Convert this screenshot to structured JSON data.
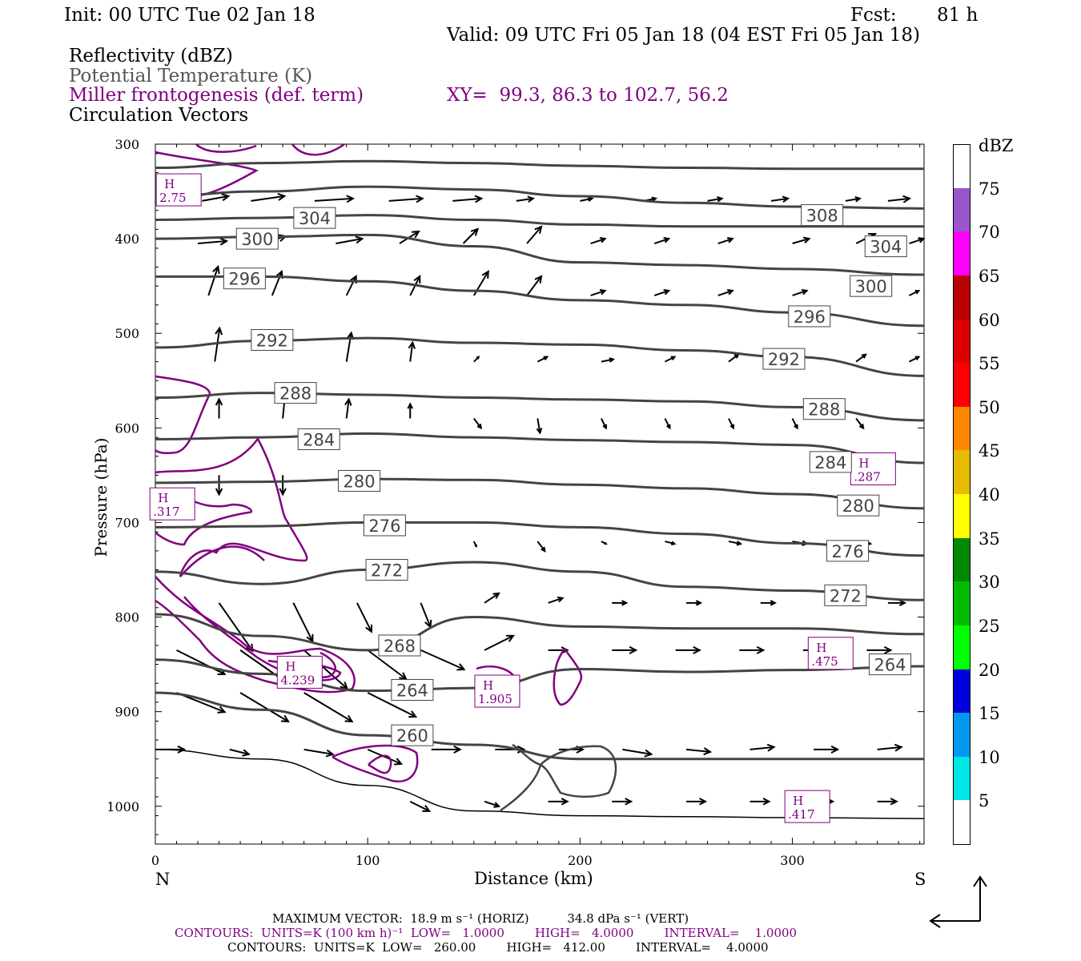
{
  "header": {
    "init": "Init: 00 UTC Tue 02 Jan 18",
    "fcst_label": "Fcst:",
    "fcst_value": "81 h",
    "valid": "Valid: 09 UTC Fri 05 Jan 18 (04 EST Fri 05 Jan 18)",
    "field1": "Reflectivity (dBZ)",
    "field2": "Potential Temperature (K)",
    "field3": "Miller frontogenesis (def. term)",
    "xy": "XY=  99.3, 86.3 to 102.7, 56.2",
    "field4": "Circulation Vectors"
  },
  "axes": {
    "ylabel": "Pressure (hPa)",
    "xlabel": "Distance (km)",
    "left_end": "N",
    "right_end": "S"
  },
  "colorbar": {
    "unit": "dBZ",
    "levels": [
      "75",
      "70",
      "65",
      "60",
      "55",
      "50",
      "45",
      "40",
      "35",
      "30",
      "25",
      "20",
      "15",
      "10",
      "5"
    ],
    "colors": [
      "#ffffff",
      "#9955cc",
      "#ff00ff",
      "#bb0000",
      "#dd0000",
      "#ff0000",
      "#ff8800",
      "#e6bb00",
      "#ffff00",
      "#008800",
      "#00bb00",
      "#00ff00",
      "#0000dd",
      "#0099ee",
      "#00e6e6",
      "#ffffff"
    ]
  },
  "footer": {
    "max_vector": "MAXIMUM VECTOR:  18.9 m s⁻¹ (HORIZ)          34.8 dPa s⁻¹ (VERT)",
    "contours1": "CONTOURS:  UNITS=K (100 km h)⁻¹  LOW=   1.0000        HIGH=   4.0000        INTERVAL=    1.0000",
    "contours2": "CONTOURS:  UNITS=K  LOW=   260.00        HIGH=   412.00        INTERVAL=    4.0000"
  },
  "chart_data": {
    "type": "line",
    "title": "",
    "xlabel": "Distance (km)",
    "ylabel": "Pressure (hPa)",
    "xlim": [
      0,
      362
    ],
    "ylim": [
      1040,
      300
    ],
    "x_ticks": [
      0,
      100,
      200,
      300
    ],
    "y_ticks": [
      300,
      400,
      500,
      600,
      700,
      800,
      900,
      1000
    ],
    "theta_contours": [
      {
        "label": "308",
        "x": [
          0,
          50,
          100,
          150,
          200,
          250,
          300,
          362
        ],
        "p": [
          325,
          320,
          318,
          320,
          323,
          325,
          326,
          326
        ]
      },
      {
        "label": "304",
        "x": [
          0,
          50,
          100,
          150,
          200,
          250,
          300,
          362
        ],
        "p": [
          355,
          350,
          345,
          348,
          355,
          362,
          366,
          368
        ]
      },
      {
        "label": "304",
        "x": [
          0,
          50,
          100,
          150,
          200,
          250,
          300,
          362
        ],
        "p": [
          380,
          378,
          375,
          380,
          385,
          387,
          387,
          387
        ]
      },
      {
        "label": "300",
        "x": [
          0,
          50,
          100,
          150,
          200,
          250,
          300,
          362
        ],
        "p": [
          400,
          398,
          396,
          408,
          425,
          428,
          432,
          438
        ]
      },
      {
        "label": "296",
        "x": [
          0,
          50,
          100,
          150,
          200,
          250,
          300,
          362
        ],
        "p": [
          440,
          440,
          445,
          455,
          465,
          470,
          478,
          492
        ]
      },
      {
        "label": "292",
        "x": [
          0,
          50,
          100,
          150,
          200,
          250,
          300,
          362
        ],
        "p": [
          515,
          508,
          505,
          510,
          512,
          518,
          525,
          545
        ]
      },
      {
        "label": "288",
        "x": [
          0,
          50,
          100,
          150,
          200,
          250,
          300,
          362
        ],
        "p": [
          568,
          563,
          565,
          568,
          570,
          572,
          578,
          592
        ]
      },
      {
        "label": "284",
        "x": [
          0,
          50,
          100,
          150,
          200,
          250,
          300,
          362
        ],
        "p": [
          612,
          610,
          606,
          610,
          613,
          615,
          618,
          637
        ]
      },
      {
        "label": "280",
        "x": [
          0,
          50,
          100,
          150,
          200,
          250,
          300,
          362
        ],
        "p": [
          658,
          657,
          654,
          655,
          660,
          664,
          670,
          685
        ]
      },
      {
        "label": "276",
        "x": [
          0,
          50,
          100,
          150,
          200,
          250,
          300,
          362
        ],
        "p": [
          705,
          704,
          700,
          700,
          705,
          712,
          722,
          735
        ]
      },
      {
        "label": "272",
        "x": [
          0,
          50,
          100,
          150,
          200,
          250,
          300,
          362
        ],
        "p": [
          752,
          765,
          750,
          742,
          752,
          768,
          772,
          782
        ]
      },
      {
        "label": "268",
        "x": [
          0,
          50,
          100,
          150,
          200,
          250,
          300,
          362
        ],
        "p": [
          797,
          820,
          835,
          800,
          810,
          812,
          812,
          818
        ]
      },
      {
        "label": "264",
        "x": [
          0,
          50,
          100,
          150,
          200,
          250,
          300,
          362
        ],
        "p": [
          845,
          860,
          878,
          875,
          855,
          858,
          856,
          852
        ]
      },
      {
        "label": "260",
        "x": [
          0,
          50,
          100,
          150,
          200,
          250,
          300,
          362
        ],
        "p": [
          880,
          898,
          925,
          935,
          950,
          950,
          950,
          950
        ]
      }
    ],
    "surface_pressure": {
      "x": [
        0,
        50,
        100,
        150,
        200,
        250,
        300,
        362
      ],
      "p": [
        940,
        950,
        978,
        1005,
        1010,
        1011,
        1012,
        1013
      ]
    },
    "frontogenesis_maxima": [
      {
        "label": "H",
        "value": "2.75",
        "x": 11,
        "p": 350
      },
      {
        "label": "H",
        "value": ".317",
        "x": 8,
        "p": 682
      },
      {
        "label": "H",
        "value": "4.239",
        "x": 68,
        "p": 860
      },
      {
        "label": "H",
        "value": "1.905",
        "x": 161,
        "p": 880
      },
      {
        "label": "H",
        "value": ".475",
        "x": 318,
        "p": 840
      },
      {
        "label": "H",
        "value": ".287",
        "x": 338,
        "p": 645
      },
      {
        "label": "H",
        "value": ".417",
        "x": 307,
        "p": 1002
      }
    ]
  }
}
